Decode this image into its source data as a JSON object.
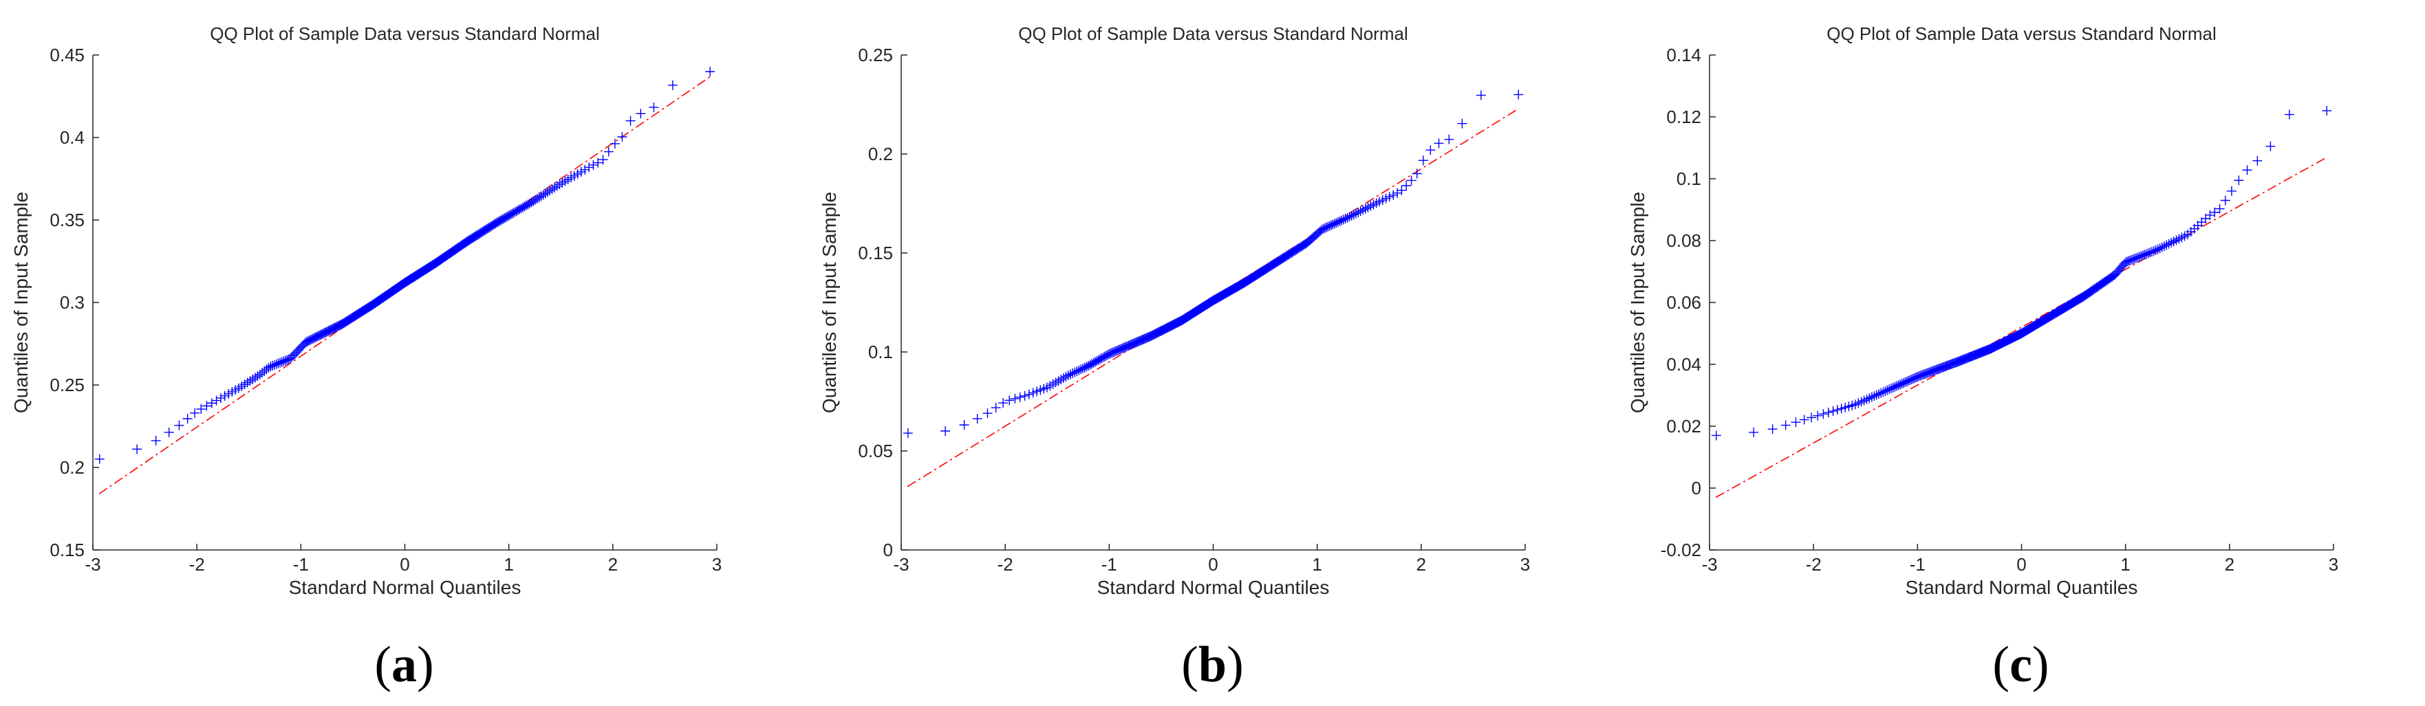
{
  "colors": {
    "points": "#0000ff",
    "ref_line": "#ff0000",
    "axis": "#262626"
  },
  "chart_data": [
    {
      "type": "scatter",
      "caption_letter": "a",
      "title": "QQ Plot of Sample Data versus Standard Normal",
      "xlabel": "Standard Normal Quantiles",
      "ylabel": "Quantiles of Input Sample",
      "xlim": [
        -3,
        3
      ],
      "ylim": [
        0.15,
        0.45
      ],
      "xticks": [
        -3,
        -2,
        -1,
        0,
        1,
        2,
        3
      ],
      "xtick_labels": [
        "-3",
        "-2",
        "-1",
        "0",
        "1",
        "2",
        "3"
      ],
      "yticks": [
        0.15,
        0.2,
        0.25,
        0.3,
        0.35,
        0.4,
        0.45
      ],
      "ytick_labels": [
        "0.15",
        "0.2",
        "0.25",
        "0.3",
        "0.35",
        "0.4",
        "0.45"
      ],
      "ref_line": {
        "x": [
          -2.94,
          2.94
        ],
        "y": [
          0.184,
          0.437
        ]
      },
      "anchors": [
        [
          -2.94,
          0.205
        ],
        [
          -2.58,
          0.211
        ],
        [
          -2.4,
          0.216
        ],
        [
          -2.2,
          0.224
        ],
        [
          -2.0,
          0.234
        ],
        [
          -1.8,
          0.241
        ],
        [
          -1.6,
          0.248
        ],
        [
          -1.4,
          0.256
        ],
        [
          -1.3,
          0.261
        ],
        [
          -1.1,
          0.266
        ],
        [
          -0.95,
          0.276
        ],
        [
          -0.6,
          0.287
        ],
        [
          -0.3,
          0.299
        ],
        [
          0.0,
          0.312
        ],
        [
          0.3,
          0.324
        ],
        [
          0.6,
          0.337
        ],
        [
          0.9,
          0.349
        ],
        [
          1.2,
          0.36
        ],
        [
          1.5,
          0.372
        ],
        [
          1.8,
          0.383
        ],
        [
          1.9,
          0.386
        ],
        [
          2.0,
          0.395
        ],
        [
          2.1,
          0.401
        ],
        [
          2.2,
          0.414
        ],
        [
          2.35,
          0.415
        ],
        [
          2.58,
          0.432
        ],
        [
          2.94,
          0.44
        ]
      ]
    },
    {
      "type": "scatter",
      "caption_letter": "b",
      "title": "QQ Plot of Sample Data versus Standard Normal",
      "xlabel": "Standard Normal Quantiles",
      "ylabel": "Quantiles of Input Sample",
      "xlim": [
        -3,
        3
      ],
      "ylim": [
        0,
        0.25
      ],
      "xticks": [
        -3,
        -2,
        -1,
        0,
        1,
        2,
        3
      ],
      "xtick_labels": [
        "-3",
        "-2",
        "-1",
        "0",
        "1",
        "2",
        "3"
      ],
      "yticks": [
        0,
        0.05,
        0.1,
        0.15,
        0.2,
        0.25
      ],
      "ytick_labels": [
        "0",
        "0.05",
        "0.1",
        "0.15",
        "0.2",
        "0.25"
      ],
      "ref_line": {
        "x": [
          -2.94,
          2.94
        ],
        "y": [
          0.032,
          0.223
        ]
      },
      "anchors": [
        [
          -2.94,
          0.059
        ],
        [
          -2.58,
          0.06
        ],
        [
          -2.4,
          0.063
        ],
        [
          -2.2,
          0.068
        ],
        [
          -2.0,
          0.075
        ],
        [
          -1.8,
          0.078
        ],
        [
          -1.6,
          0.082
        ],
        [
          -1.4,
          0.088
        ],
        [
          -1.2,
          0.093
        ],
        [
          -1.0,
          0.099
        ],
        [
          -0.6,
          0.108
        ],
        [
          -0.3,
          0.116
        ],
        [
          0.0,
          0.126
        ],
        [
          0.3,
          0.135
        ],
        [
          0.6,
          0.145
        ],
        [
          0.9,
          0.155
        ],
        [
          1.05,
          0.162
        ],
        [
          1.3,
          0.168
        ],
        [
          1.6,
          0.176
        ],
        [
          1.8,
          0.181
        ],
        [
          1.95,
          0.189
        ],
        [
          2.05,
          0.2
        ],
        [
          2.15,
          0.205
        ],
        [
          2.3,
          0.208
        ],
        [
          2.58,
          0.23
        ],
        [
          2.94,
          0.23
        ]
      ]
    },
    {
      "type": "scatter",
      "caption_letter": "c",
      "title": "QQ Plot of Sample Data versus Standard Normal",
      "xlabel": "Standard Normal Quantiles",
      "ylabel": "Quantiles of Input Sample",
      "xlim": [
        -3,
        3
      ],
      "ylim": [
        -0.02,
        0.14
      ],
      "xticks": [
        -3,
        -2,
        -1,
        0,
        1,
        2,
        3
      ],
      "xtick_labels": [
        "-3",
        "-2",
        "-1",
        "0",
        "1",
        "2",
        "3"
      ],
      "yticks": [
        -0.02,
        0,
        0.02,
        0.04,
        0.06,
        0.08,
        0.1,
        0.12,
        0.14
      ],
      "ytick_labels": [
        "-0.02",
        "0",
        "0.02",
        "0.04",
        "0.06",
        "0.08",
        "0.1",
        "0.12",
        "0.14"
      ],
      "ref_line": {
        "x": [
          -2.94,
          2.94
        ],
        "y": [
          -0.003,
          0.107
        ]
      },
      "anchors": [
        [
          -2.94,
          0.017
        ],
        [
          -2.58,
          0.018
        ],
        [
          -2.4,
          0.019
        ],
        [
          -2.2,
          0.021
        ],
        [
          -2.0,
          0.023
        ],
        [
          -1.8,
          0.025
        ],
        [
          -1.6,
          0.027
        ],
        [
          -1.4,
          0.03
        ],
        [
          -1.2,
          0.033
        ],
        [
          -1.0,
          0.036
        ],
        [
          -0.6,
          0.041
        ],
        [
          -0.3,
          0.045
        ],
        [
          0.0,
          0.05
        ],
        [
          0.3,
          0.056
        ],
        [
          0.6,
          0.062
        ],
        [
          0.9,
          0.069
        ],
        [
          1.0,
          0.073
        ],
        [
          1.3,
          0.077
        ],
        [
          1.6,
          0.082
        ],
        [
          1.8,
          0.088
        ],
        [
          1.9,
          0.09
        ],
        [
          2.0,
          0.095
        ],
        [
          2.1,
          0.1
        ],
        [
          2.2,
          0.104
        ],
        [
          2.35,
          0.108
        ],
        [
          2.58,
          0.121
        ],
        [
          2.94,
          0.122
        ]
      ]
    }
  ]
}
